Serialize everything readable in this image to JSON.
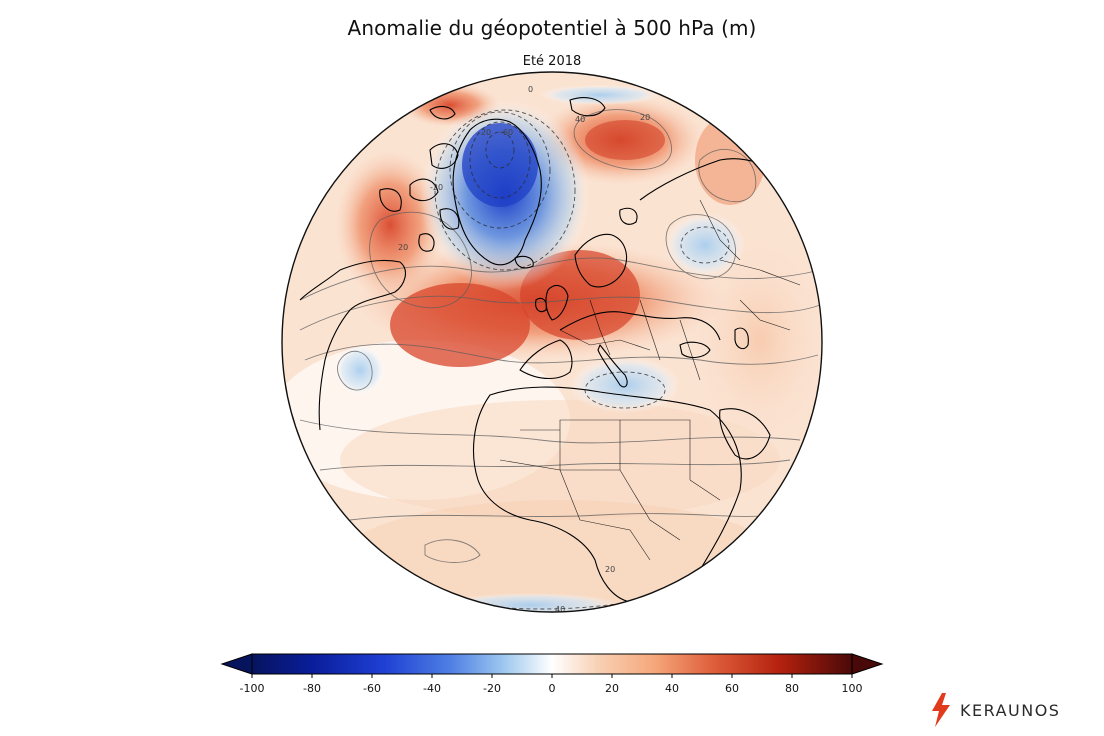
{
  "header": {
    "title": "Anomalie du géopotentiel à 500 hPa (m)",
    "subtitle": "Eté 2018"
  },
  "colorbar": {
    "ticks": [
      "-100",
      "-80",
      "-60",
      "-40",
      "-20",
      "0",
      "20",
      "40",
      "60",
      "80",
      "100"
    ],
    "colors": {
      "min": "#06145e",
      "low": "#1f40d4",
      "mid_low": "#9ec8ef",
      "zero": "#ffffff",
      "mid_high": "#f5a77b",
      "high": "#b4210e",
      "max": "#4a0909"
    }
  },
  "map": {
    "contour_labels": [
      "0",
      "20",
      "40",
      "-20",
      "-60",
      "-20",
      "20",
      "20",
      "40"
    ]
  },
  "brand": {
    "name": "KERAUNOS",
    "accent": "#e23a1d"
  }
}
